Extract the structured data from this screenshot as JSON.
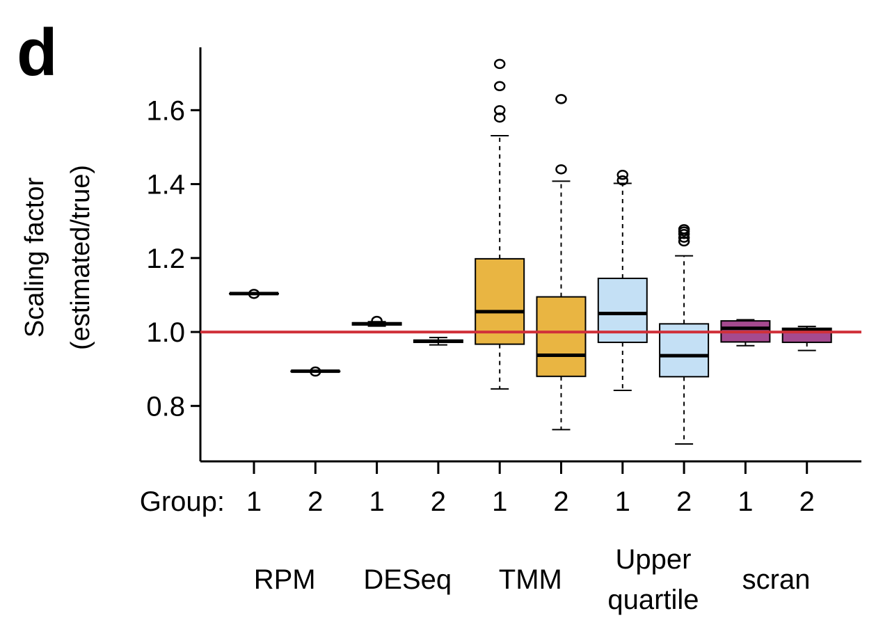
{
  "panel_label": "d",
  "chart_data": {
    "type": "boxplot",
    "ylabel_lines": [
      "Scaling factor",
      "(estimated/true)"
    ],
    "ylim": [
      0.65,
      1.77
    ],
    "yticks": [
      0.8,
      1.0,
      1.2,
      1.4,
      1.6
    ],
    "ytick_labels": [
      "0.8",
      "1.0",
      "1.2",
      "1.4",
      "1.6"
    ],
    "group_axis_label": "Group:",
    "reference_line": {
      "y": 1.0,
      "color": "#d0313a"
    },
    "methods": [
      {
        "name_lines": [
          "RPM"
        ]
      },
      {
        "name_lines": [
          "DESeq"
        ]
      },
      {
        "name_lines": [
          "TMM"
        ]
      },
      {
        "name_lines": [
          "Upper",
          "quartile"
        ]
      },
      {
        "name_lines": [
          "scran"
        ]
      }
    ],
    "boxes": [
      {
        "method": 0,
        "group": "1",
        "color": "#ffffff",
        "whisker_low": 1.104,
        "q1": 1.104,
        "median": 1.104,
        "q3": 1.104,
        "whisker_high": 1.104,
        "outliers": [
          1.103
        ]
      },
      {
        "method": 0,
        "group": "2",
        "color": "#ffffff",
        "whisker_low": 0.894,
        "q1": 0.894,
        "median": 0.894,
        "q3": 0.894,
        "whisker_high": 0.894,
        "outliers": [
          0.893
        ]
      },
      {
        "method": 1,
        "group": "1",
        "color": "#ffffff",
        "whisker_low": 1.016,
        "q1": 1.019,
        "median": 1.022,
        "q3": 1.025,
        "whisker_high": 1.028,
        "outliers": [
          1.03
        ]
      },
      {
        "method": 1,
        "group": "2",
        "color": "#ffffff",
        "whisker_low": 0.965,
        "q1": 0.972,
        "median": 0.975,
        "q3": 0.978,
        "whisker_high": 0.985,
        "outliers": []
      },
      {
        "method": 2,
        "group": "1",
        "color": "#e9b542",
        "whisker_low": 0.846,
        "q1": 0.967,
        "median": 1.055,
        "q3": 1.198,
        "whisker_high": 1.531,
        "outliers": [
          1.58,
          1.6,
          1.665,
          1.725
        ]
      },
      {
        "method": 2,
        "group": "2",
        "color": "#e9b542",
        "whisker_low": 0.736,
        "q1": 0.88,
        "median": 0.937,
        "q3": 1.095,
        "whisker_high": 1.408,
        "outliers": [
          1.44,
          1.63
        ]
      },
      {
        "method": 3,
        "group": "1",
        "color": "#c4e0f5",
        "whisker_low": 0.842,
        "q1": 0.972,
        "median": 1.05,
        "q3": 1.145,
        "whisker_high": 1.402,
        "outliers": [
          1.41,
          1.425
        ]
      },
      {
        "method": 3,
        "group": "2",
        "color": "#c4e0f5",
        "whisker_low": 0.697,
        "q1": 0.879,
        "median": 0.936,
        "q3": 1.022,
        "whisker_high": 1.206,
        "outliers": [
          1.245,
          1.255,
          1.265,
          1.272,
          1.278
        ]
      },
      {
        "method": 4,
        "group": "1",
        "color": "#a54a8f",
        "whisker_low": 0.963,
        "q1": 0.973,
        "median": 1.01,
        "q3": 1.03,
        "whisker_high": 1.033,
        "outliers": []
      },
      {
        "method": 4,
        "group": "2",
        "color": "#a54a8f",
        "whisker_low": 0.95,
        "q1": 0.972,
        "median": 1.005,
        "q3": 1.01,
        "whisker_high": 1.015,
        "outliers": []
      }
    ]
  }
}
